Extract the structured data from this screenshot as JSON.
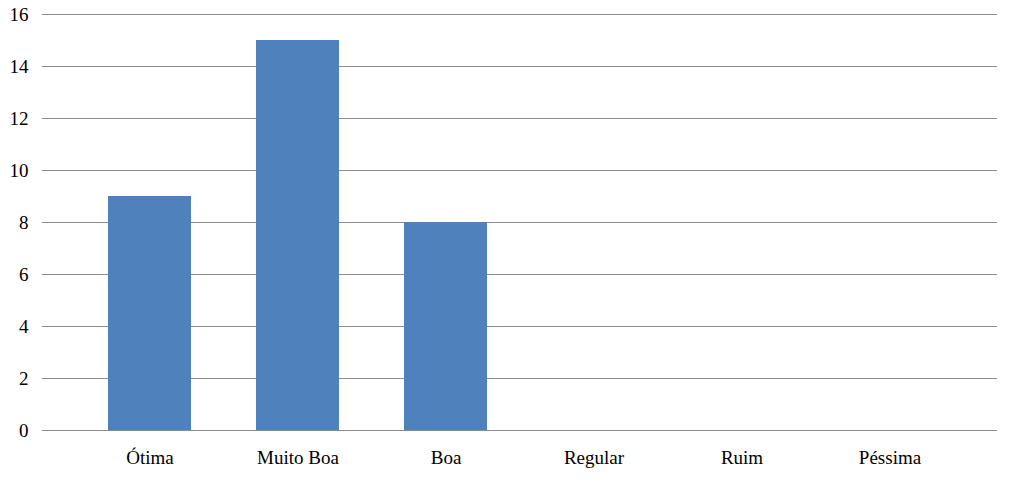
{
  "chart_data": {
    "type": "bar",
    "categories": [
      "Ótima",
      "Muito Boa",
      "Boa",
      "Regular",
      "Ruim",
      "Péssima"
    ],
    "values": [
      9,
      15,
      8,
      0,
      0,
      0
    ],
    "color": "#4f81bd",
    "ylim": [
      0,
      16
    ],
    "yticks": [
      0,
      2,
      4,
      6,
      8,
      10,
      12,
      14,
      16
    ],
    "grid": true
  }
}
